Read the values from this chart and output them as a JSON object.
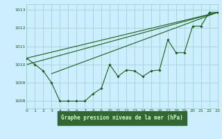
{
  "title": "Graphe pression niveau de la mer (hPa)",
  "bg_color": "#cceeff",
  "grid_color": "#99cccc",
  "line_color": "#1a5c1a",
  "label_bg": "#336633",
  "label_text": "#ccffcc",
  "xlim": [
    0,
    23
  ],
  "ylim": [
    1007.6,
    1013.3
  ],
  "yticks": [
    1008,
    1009,
    1010,
    1011,
    1012,
    1013
  ],
  "xticks": [
    0,
    1,
    2,
    3,
    4,
    5,
    6,
    7,
    8,
    9,
    10,
    11,
    12,
    13,
    14,
    15,
    16,
    17,
    18,
    19,
    20,
    21,
    22,
    23
  ],
  "main_x": [
    0,
    1,
    2,
    3,
    4,
    5,
    6,
    7,
    8,
    9,
    10,
    11,
    12,
    13,
    14,
    15,
    16,
    17,
    18,
    19,
    20,
    21,
    22,
    23
  ],
  "main_y": [
    1010.35,
    1010.0,
    1009.65,
    1009.0,
    1008.0,
    1008.0,
    1008.0,
    1008.0,
    1008.4,
    1008.7,
    1010.0,
    1009.35,
    1009.7,
    1009.65,
    1009.35,
    1009.65,
    1009.7,
    1011.35,
    1010.65,
    1010.65,
    1012.1,
    1012.1,
    1012.85,
    1012.85
  ],
  "diag_lines": [
    {
      "x": [
        0,
        23
      ],
      "y": [
        1010.35,
        1012.85
      ]
    },
    {
      "x": [
        0,
        23
      ],
      "y": [
        1010.0,
        1012.85
      ]
    },
    {
      "x": [
        3,
        23
      ],
      "y": [
        1009.5,
        1012.85
      ]
    }
  ],
  "figsize": [
    3.2,
    2.0
  ],
  "dpi": 100
}
